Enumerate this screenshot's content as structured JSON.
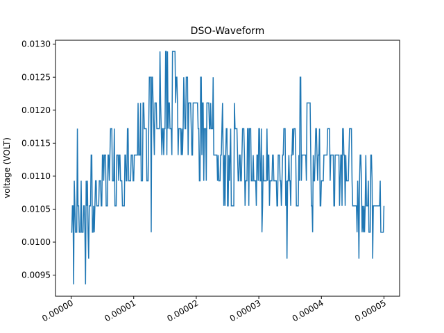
{
  "chart_data": {
    "type": "line",
    "title": "DSO-Waveform",
    "xlabel": "",
    "ylabel": "voltage (VOLT)",
    "xlim": [
      -2.5e-06,
      5.25e-05
    ],
    "ylim": [
      0.00918,
      0.01306
    ],
    "xticks": [
      0,
      1e-05,
      2e-05,
      3e-05,
      4e-05,
      5e-05
    ],
    "xtick_labels": [
      "0.00000",
      "0.00001",
      "0.00002",
      "0.00003",
      "0.00004",
      "0.00005"
    ],
    "yticks": [
      0.0095,
      0.01,
      0.0105,
      0.011,
      0.0115,
      0.012,
      0.0125,
      0.013
    ],
    "ytick_labels": [
      "0.0095",
      "0.0100",
      "0.0105",
      "0.0110",
      "0.0115",
      "0.0120",
      "0.0125",
      "0.0130"
    ],
    "grid": false,
    "legend": "none",
    "series": [
      {
        "color": "#1f77b4",
        "x_start": 0,
        "x_step": 1e-07,
        "levels": [
          0.00975,
          0.01015,
          0.01055,
          0.01093,
          0.01132,
          0.01172,
          0.01211,
          0.0125,
          0.01289
        ],
        "envelope": [
          {
            "x": 0.0,
            "low": 0.00975,
            "high": 0.01055
          },
          {
            "x": 1e-06,
            "low": 0.00975,
            "high": 0.01093
          },
          {
            "x": 3e-06,
            "low": 0.00975,
            "high": 0.01132
          },
          {
            "x": 6e-06,
            "low": 0.01015,
            "high": 0.01172
          },
          {
            "x": 9e-06,
            "low": 0.01055,
            "high": 0.01172
          },
          {
            "x": 1.1e-05,
            "low": 0.01093,
            "high": 0.01211
          },
          {
            "x": 1.4e-05,
            "low": 0.01093,
            "high": 0.0125
          },
          {
            "x": 1.6e-05,
            "low": 0.01093,
            "high": 0.01289
          },
          {
            "x": 1.9e-05,
            "low": 0.01132,
            "high": 0.0125
          },
          {
            "x": 2.2e-05,
            "low": 0.01093,
            "high": 0.0125
          },
          {
            "x": 2.5e-05,
            "low": 0.01055,
            "high": 0.01211
          },
          {
            "x": 2.8e-05,
            "low": 0.01055,
            "high": 0.01172
          },
          {
            "x": 3.1e-05,
            "low": 0.01015,
            "high": 0.01172
          },
          {
            "x": 3.4e-05,
            "low": 0.01055,
            "high": 0.01172
          },
          {
            "x": 3.7e-05,
            "low": 0.01055,
            "high": 0.01211
          },
          {
            "x": 4e-05,
            "low": 0.01055,
            "high": 0.01211
          },
          {
            "x": 4.3e-05,
            "low": 0.01055,
            "high": 0.01172
          },
          {
            "x": 4.6e-05,
            "low": 0.01015,
            "high": 0.01132
          },
          {
            "x": 4.8e-05,
            "low": 0.00975,
            "high": 0.01132
          },
          {
            "x": 5e-05,
            "low": 0.00975,
            "high": 0.01093
          }
        ],
        "spikes": [
          {
            "x": 4e-07,
            "y": 0.00936
          },
          {
            "x": 2.3e-06,
            "y": 0.00936
          },
          {
            "x": 1e-06,
            "y": 0.01172
          },
          {
            "x": 1.42e-05,
            "y": 0.01289
          },
          {
            "x": 1.62e-05,
            "y": 0.01289
          },
          {
            "x": 1.66e-05,
            "y": 0.01289
          },
          {
            "x": 1.28e-05,
            "y": 0.01015
          },
          {
            "x": 3.45e-05,
            "y": 0.00975
          },
          {
            "x": 3.66e-05,
            "y": 0.0125
          },
          {
            "x": 4.6e-05,
            "y": 0.00975
          },
          {
            "x": 3.86e-05,
            "y": 0.01015
          }
        ]
      }
    ]
  }
}
